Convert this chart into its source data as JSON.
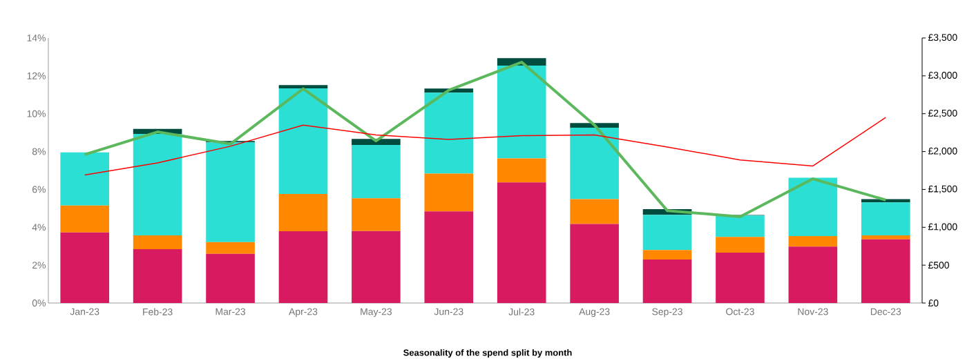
{
  "chart_data": {
    "type": "bar",
    "title": "Seasonality of the spend split by month",
    "stacked": true,
    "categories": [
      "Jan-23",
      "Feb-23",
      "Mar-23",
      "Apr-23",
      "May-23",
      "Jun-23",
      "Jul-23",
      "Aug-23",
      "Sep-23",
      "Oct-23",
      "Nov-23",
      "Dec-23"
    ],
    "ylim": [
      0,
      14
    ],
    "yticks": [
      {
        "value": 0,
        "label": "0%"
      },
      {
        "value": 2,
        "label": "2%"
      },
      {
        "value": 4,
        "label": "4%"
      },
      {
        "value": 6,
        "label": "6%"
      },
      {
        "value": 8,
        "label": "8%"
      },
      {
        "value": 10,
        "label": "10%"
      },
      {
        "value": 12,
        "label": "12%"
      },
      {
        "value": 14,
        "label": "14%"
      }
    ],
    "y2lim": [
      0,
      3500
    ],
    "y2ticks": [
      {
        "value": 0,
        "label": "£0"
      },
      {
        "value": 500,
        "label": "£500"
      },
      {
        "value": 1000,
        "label": "£1,000"
      },
      {
        "value": 1500,
        "label": "£1,500"
      },
      {
        "value": 2000,
        "label": "£2,000"
      },
      {
        "value": 2500,
        "label": "£2,500"
      },
      {
        "value": 3000,
        "label": "£3,000"
      },
      {
        "value": 3500,
        "label": "£3,500"
      }
    ],
    "series": [
      {
        "color": "#d81b60",
        "values": [
          3.73,
          2.84,
          2.6,
          3.79,
          3.8,
          4.84,
          6.37,
          4.17,
          2.3,
          2.66,
          2.98,
          3.36
        ]
      },
      {
        "color": "#ff8800",
        "values": [
          1.42,
          0.73,
          0.62,
          1.97,
          1.73,
          2.0,
          1.27,
          1.32,
          0.5,
          0.83,
          0.56,
          0.21
        ]
      },
      {
        "color": "#2cdfd5",
        "values": [
          2.81,
          5.36,
          5.27,
          5.58,
          2.82,
          4.27,
          4.9,
          3.77,
          1.86,
          1.13,
          3.08,
          1.74
        ]
      },
      {
        "color": "#004d40",
        "values": [
          0,
          0.27,
          0.07,
          0.17,
          0.32,
          0.22,
          0.39,
          0.25,
          0.3,
          0.03,
          0,
          0.18
        ]
      },
      {
        "type": "line",
        "axis": "y2",
        "color": "#5cb85c",
        "values": [
          1960,
          2260,
          2100,
          2830,
          2140,
          2810,
          3180,
          2350,
          1220,
          1140,
          1640,
          1360
        ]
      },
      {
        "type": "line",
        "axis": "y2",
        "color": "#ff0000",
        "values": [
          1690,
          1850,
          2070,
          2350,
          2220,
          2160,
          2210,
          2220,
          2060,
          1890,
          1810,
          2450
        ]
      }
    ]
  }
}
